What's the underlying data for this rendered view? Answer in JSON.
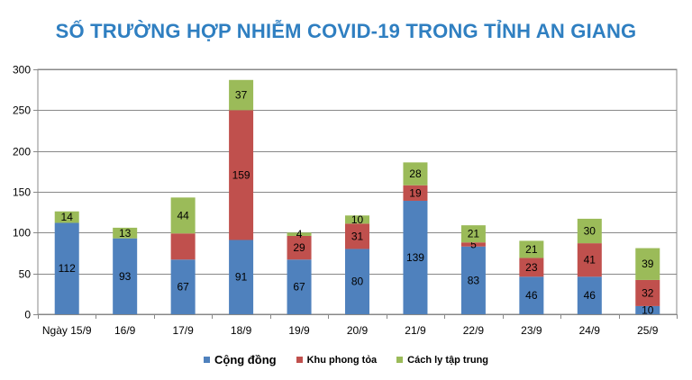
{
  "chart_data": {
    "type": "bar",
    "stacked": true,
    "title": "SỐ TRƯỜNG HỢP NHIỄM COVID-19 TRONG TỈNH AN GIANG",
    "categories": [
      "Ngày 15/9",
      "16/9",
      "17/9",
      "18/9",
      "19/9",
      "20/9",
      "21/9",
      "22/9",
      "23/9",
      "24/9",
      "25/9"
    ],
    "series": [
      {
        "name": "Cộng đồng",
        "color": "#4f81bd",
        "values": [
          112,
          93,
          67,
          91,
          67,
          80,
          139,
          83,
          46,
          46,
          10
        ],
        "labels": [
          "112",
          "93",
          "67",
          "91",
          "67",
          "80",
          "139",
          "83",
          "46",
          "46",
          "10"
        ]
      },
      {
        "name": "Khu phong tỏa",
        "color": "#c0504d",
        "values": [
          0,
          0,
          32,
          159,
          29,
          31,
          19,
          5,
          23,
          41,
          32
        ],
        "labels": [
          "",
          "",
          "",
          "159",
          "29",
          "31",
          "19",
          "5",
          "23",
          "41",
          "32"
        ]
      },
      {
        "name": "Cách ly tập trung",
        "color": "#9bbb59",
        "values": [
          14,
          13,
          44,
          37,
          4,
          10,
          28,
          21,
          21,
          30,
          39
        ],
        "labels": [
          "14",
          "13",
          "44",
          "37",
          "4",
          "10",
          "28",
          "21",
          "21",
          "30",
          "39"
        ]
      }
    ],
    "ylim": [
      0,
      300
    ],
    "yticks": [
      "0",
      "50",
      "100",
      "150",
      "200",
      "250",
      "300"
    ],
    "ytick_values": [
      0,
      50,
      100,
      150,
      200,
      250,
      300
    ],
    "xlabel": "",
    "ylabel": "",
    "grid": true,
    "legend_position": "bottom"
  }
}
